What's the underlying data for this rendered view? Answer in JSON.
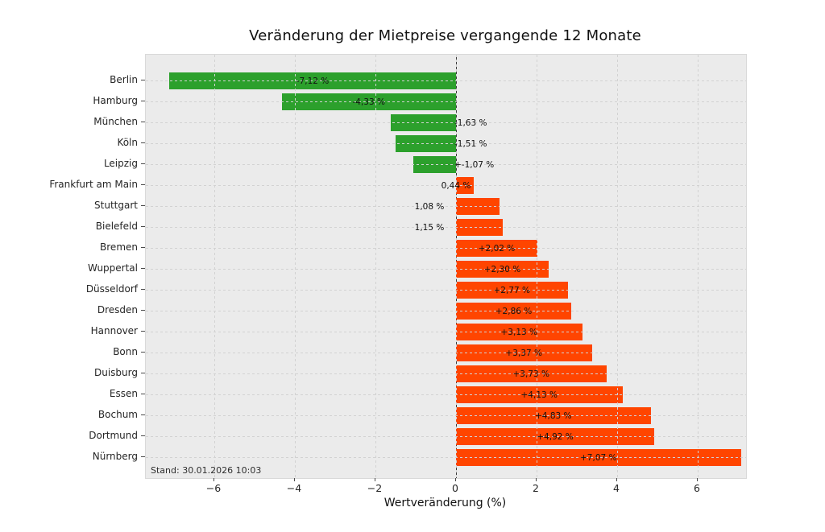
{
  "chart_data": {
    "type": "bar",
    "orientation": "horizontal",
    "title": "Veränderung der Mietpreise vergangende 12 Monate",
    "xlabel": "Wertveränderung (%)",
    "xlim": [
      -7.7,
      7.2
    ],
    "x_ticks": [
      -6,
      -4,
      -2,
      0,
      2,
      4,
      6
    ],
    "grid": "dashed",
    "legend": "none",
    "annotation": "Stand: 30.01.2026 10:03",
    "categories": [
      "Berlin",
      "Hamburg",
      "München",
      "Köln",
      "Leipzig",
      "Frankfurt am Main",
      "Stuttgart",
      "Bielefeld",
      "Bremen",
      "Wuppertal",
      "Düsseldorf",
      "Dresden",
      "Hannover",
      "Bonn",
      "Duisburg",
      "Essen",
      "Bochum",
      "Dortmund",
      "Nürnberg"
    ],
    "values": [
      -7.12,
      -4.33,
      -1.63,
      -1.51,
      -1.07,
      0.44,
      1.08,
      1.15,
      2.02,
      2.3,
      2.77,
      2.86,
      3.13,
      3.37,
      3.73,
      4.13,
      4.83,
      4.92,
      7.07
    ],
    "bar_labels": [
      "-7,12 %",
      "-4,33 %",
      "-1,63 %",
      "-1,51 %",
      "+-1,07 %",
      "0,44 %",
      "1,08 %",
      "1,15 %",
      "+2,02 %",
      "+2,30 %",
      "+2,77 %",
      "+2,86 %",
      "+3,13 %",
      "+3,37 %",
      "+3,73 %",
      "+4,13 %",
      "+4,83 %",
      "+4,92 %",
      "+7,07 %"
    ],
    "colors": {
      "negative_bar": "#2ca02c",
      "positive_bar": "#ff4500",
      "plot_background": "#ebebeb",
      "gridline": "#d2d2d2",
      "text": "#111111"
    }
  }
}
